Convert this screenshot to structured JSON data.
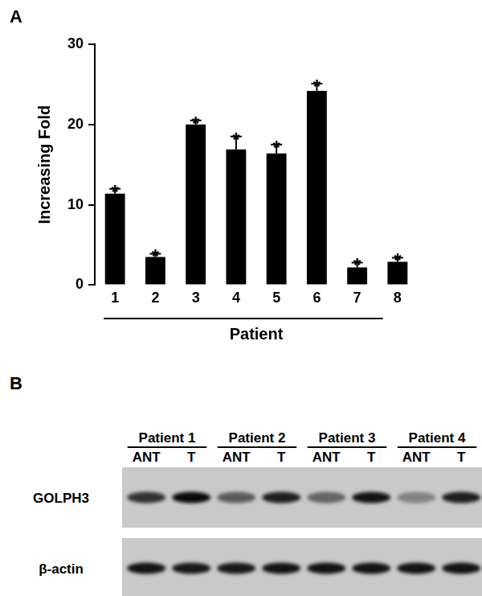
{
  "chart_data": {
    "type": "bar",
    "panel_label": "A",
    "categories": [
      "1",
      "2",
      "3",
      "4",
      "5",
      "6",
      "7",
      "8"
    ],
    "values": [
      11.4,
      3.5,
      20.0,
      16.9,
      16.4,
      24.2,
      2.2,
      2.9
    ],
    "errors": [
      0.6,
      0.4,
      0.5,
      1.6,
      1.1,
      0.9,
      0.6,
      0.5
    ],
    "annotations": [
      "*",
      "*",
      "*",
      "*",
      "*",
      "*",
      "*",
      "*"
    ],
    "y_label": "Increasing Fold",
    "x_label": "Patient",
    "color": "#000000",
    "ylim": [
      0,
      30
    ],
    "yticks": [
      0,
      10,
      20,
      30
    ],
    "grid": false
  },
  "blot": {
    "panel_label": "B",
    "patients": [
      "Patient 1",
      "Patient 2",
      "Patient 3",
      "Patient 4"
    ],
    "lane_labels": [
      "ANT",
      "T"
    ],
    "rows": [
      {
        "label": "GOLPH3",
        "intensity": [
          0.75,
          0.95,
          0.55,
          0.85,
          0.5,
          0.9,
          0.35,
          0.85
        ]
      },
      {
        "label": "β-actin",
        "intensity": [
          0.9,
          0.88,
          0.88,
          0.9,
          0.9,
          0.9,
          0.9,
          0.9
        ]
      }
    ]
  }
}
